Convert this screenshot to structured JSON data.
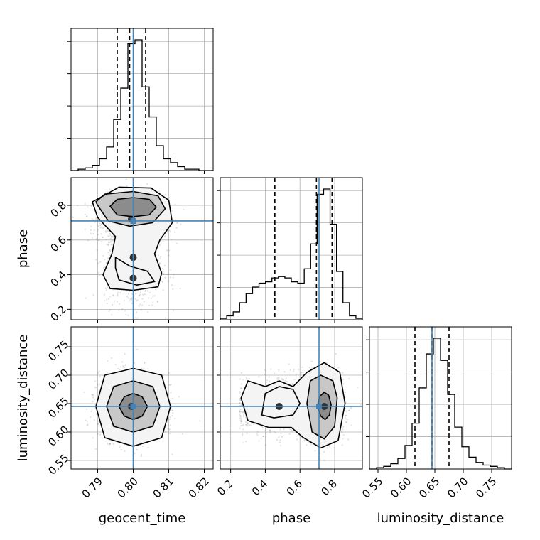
{
  "chart_data": {
    "type": "corner",
    "parameters": [
      "geocent_time",
      "phase",
      "luminosity_distance"
    ],
    "axes": {
      "geocent_time": {
        "range": [
          0.7825,
          0.8225
        ],
        "ticks": [
          0.79,
          0.8,
          0.81,
          0.82
        ],
        "tick_labels": [
          "0.79",
          "0.80",
          "0.81",
          "0.82"
        ]
      },
      "phase": {
        "range": [
          0.14,
          0.96
        ],
        "ticks": [
          0.2,
          0.4,
          0.6,
          0.8
        ],
        "tick_labels": [
          "0.2",
          "0.4",
          "0.6",
          "0.8"
        ]
      },
      "luminosity_distance": {
        "range": [
          0.535,
          0.785
        ],
        "ticks": [
          0.55,
          0.6,
          0.65,
          0.7,
          0.75
        ],
        "tick_labels": [
          "0.55",
          "0.60",
          "0.65",
          "0.70",
          "0.75"
        ]
      }
    },
    "truths": {
      "geocent_time": 0.8,
      "phase": 0.71,
      "luminosity_distance": 0.645
    },
    "quantiles": {
      "geocent_time": [
        0.7955,
        0.799,
        0.8035
      ],
      "phase": [
        0.455,
        0.695,
        0.785
      ],
      "luminosity_distance": [
        0.615,
        0.645,
        0.675
      ]
    },
    "histograms": {
      "geocent_time": {
        "edges_range": [
          0.7825,
          0.8225
        ],
        "counts": [
          0,
          1,
          2,
          4,
          9,
          18,
          39,
          63,
          97,
          100,
          64,
          41,
          19,
          9,
          6,
          3,
          1,
          1,
          0,
          0
        ]
      },
      "phase": {
        "edges_range": [
          0.14,
          0.96
        ],
        "counts": [
          1,
          3,
          6,
          13,
          20,
          25,
          28,
          29,
          32,
          33,
          32,
          29,
          28,
          39,
          58,
          96,
          100,
          73,
          37,
          13,
          3,
          1
        ]
      },
      "luminosity_distance": {
        "edges_range": [
          0.535,
          0.785
        ],
        "counts": [
          0,
          1,
          2,
          4,
          8,
          18,
          35,
          62,
          88,
          100,
          83,
          57,
          32,
          17,
          9,
          5,
          3,
          2,
          1,
          0
        ]
      }
    },
    "contours_2d": {
      "phase_vs_geocent_time": {
        "levels": [
          [
            [
              0.7935,
              0.795
            ],
            [
              0.7955,
              0.745
            ],
            [
              0.8,
              0.735
            ],
            [
              0.8045,
              0.745
            ],
            [
              0.8065,
              0.79
            ],
            [
              0.8045,
              0.835
            ],
            [
              0.8,
              0.845
            ],
            [
              0.7955,
              0.835
            ],
            [
              0.7935,
              0.795
            ]
          ],
          [
            [
              0.79,
              0.8
            ],
            [
              0.793,
              0.71
            ],
            [
              0.799,
              0.68
            ],
            [
              0.8055,
              0.7
            ],
            [
              0.809,
              0.78
            ],
            [
              0.807,
              0.855
            ],
            [
              0.8,
              0.88
            ],
            [
              0.792,
              0.865
            ],
            [
              0.7895,
              0.82
            ]
          ],
          [
            [
              0.7885,
              0.82
            ],
            [
              0.79,
              0.73
            ],
            [
              0.795,
              0.62
            ],
            [
              0.794,
              0.52
            ],
            [
              0.7915,
              0.4
            ],
            [
              0.7935,
              0.32
            ],
            [
              0.8,
              0.31
            ],
            [
              0.807,
              0.33
            ],
            [
              0.808,
              0.41
            ],
            [
              0.806,
              0.52
            ],
            [
              0.8075,
              0.6
            ],
            [
              0.811,
              0.7
            ],
            [
              0.81,
              0.83
            ],
            [
              0.805,
              0.9
            ],
            [
              0.796,
              0.905
            ],
            [
              0.7885,
              0.82
            ]
          ]
        ],
        "inner_polygon": [
          [
            0.795,
            0.5
          ],
          [
            0.799,
            0.45
          ],
          [
            0.804,
            0.42
          ],
          [
            0.806,
            0.36
          ],
          [
            0.801,
            0.34
          ],
          [
            0.796,
            0.37
          ],
          [
            0.795,
            0.44
          ]
        ]
      },
      "luminosity_distance_vs_geocent_time": {
        "levels": [
          [
            [
              0.796,
              0.645
            ],
            [
              0.7975,
              0.628
            ],
            [
              0.8,
              0.622
            ],
            [
              0.8025,
              0.628
            ],
            [
              0.804,
              0.645
            ],
            [
              0.8025,
              0.662
            ],
            [
              0.8,
              0.668
            ],
            [
              0.7975,
              0.662
            ],
            [
              0.796,
              0.645
            ]
          ],
          [
            [
              0.7925,
              0.645
            ],
            [
              0.7945,
              0.61
            ],
            [
              0.8,
              0.6
            ],
            [
              0.8055,
              0.61
            ],
            [
              0.8075,
              0.645
            ],
            [
              0.8055,
              0.68
            ],
            [
              0.8,
              0.69
            ],
            [
              0.7945,
              0.68
            ],
            [
              0.7925,
              0.645
            ]
          ],
          [
            [
              0.7895,
              0.645
            ],
            [
              0.792,
              0.59
            ],
            [
              0.8,
              0.575
            ],
            [
              0.808,
              0.59
            ],
            [
              0.8105,
              0.645
            ],
            [
              0.808,
              0.7
            ],
            [
              0.8,
              0.712
            ],
            [
              0.792,
              0.7
            ],
            [
              0.7895,
              0.645
            ]
          ]
        ]
      },
      "luminosity_distance_vs_phase": {
        "levels": [
          [
            [
              0.7,
              0.645
            ],
            [
              0.72,
              0.628
            ],
            [
              0.745,
              0.622
            ],
            [
              0.77,
              0.63
            ],
            [
              0.78,
              0.648
            ],
            [
              0.765,
              0.665
            ],
            [
              0.74,
              0.67
            ],
            [
              0.715,
              0.663
            ],
            [
              0.7,
              0.645
            ]
          ],
          [
            [
              0.64,
              0.65
            ],
            [
              0.67,
              0.6
            ],
            [
              0.74,
              0.588
            ],
            [
              0.8,
              0.61
            ],
            [
              0.815,
              0.66
            ],
            [
              0.79,
              0.69
            ],
            [
              0.72,
              0.7
            ],
            [
              0.66,
              0.69
            ],
            [
              0.64,
              0.65
            ]
          ],
          [
            [
              0.26,
              0.66
            ],
            [
              0.3,
              0.62
            ],
            [
              0.42,
              0.608
            ],
            [
              0.55,
              0.608
            ],
            [
              0.62,
              0.59
            ],
            [
              0.72,
              0.572
            ],
            [
              0.82,
              0.585
            ],
            [
              0.86,
              0.65
            ],
            [
              0.83,
              0.705
            ],
            [
              0.74,
              0.722
            ],
            [
              0.64,
              0.705
            ],
            [
              0.56,
              0.68
            ],
            [
              0.48,
              0.69
            ],
            [
              0.4,
              0.68
            ],
            [
              0.3,
              0.69
            ],
            [
              0.26,
              0.66
            ]
          ]
        ],
        "inner_polygon": [
          [
            0.38,
            0.63
          ],
          [
            0.45,
            0.625
          ],
          [
            0.56,
            0.63
          ],
          [
            0.6,
            0.65
          ],
          [
            0.56,
            0.675
          ],
          [
            0.48,
            0.68
          ],
          [
            0.4,
            0.668
          ]
        ]
      }
    },
    "density_peaks": {
      "phase_vs_geocent_time": [
        [
          0.7995,
          0.72
        ],
        [
          0.8,
          0.5
        ],
        [
          0.8,
          0.38
        ]
      ],
      "luminosity_distance_vs_geocent_time": [
        [
          0.7995,
          0.645
        ]
      ],
      "luminosity_distance_vs_phase": [
        [
          0.74,
          0.645
        ],
        [
          0.48,
          0.645
        ]
      ]
    },
    "colors": {
      "truth": "#4682b4",
      "hist": "#000000",
      "samples": "#888888",
      "grid": "#b0b0b0"
    }
  }
}
